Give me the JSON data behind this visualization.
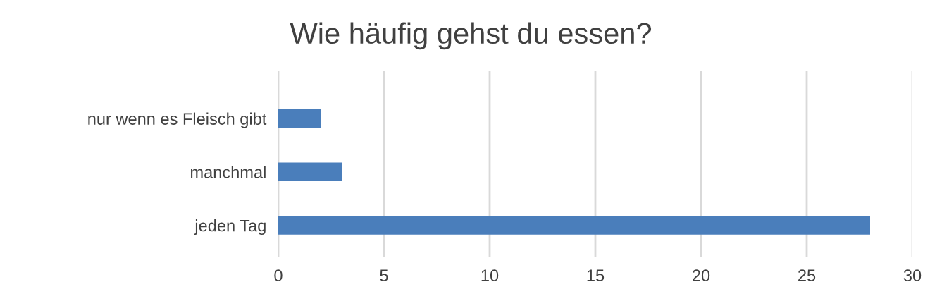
{
  "chart_data": {
    "type": "bar",
    "orientation": "horizontal",
    "title": "Wie häufig gehst du essen?",
    "categories": [
      "nur wenn es Fleisch gibt",
      "manchmal",
      "jeden Tag"
    ],
    "values": [
      2,
      3,
      28
    ],
    "color": "#4a7ebb",
    "xlim": [
      0,
      30
    ],
    "xticks": [
      0,
      5,
      10,
      15,
      20,
      25,
      30
    ],
    "grid": "x",
    "legend": false
  }
}
